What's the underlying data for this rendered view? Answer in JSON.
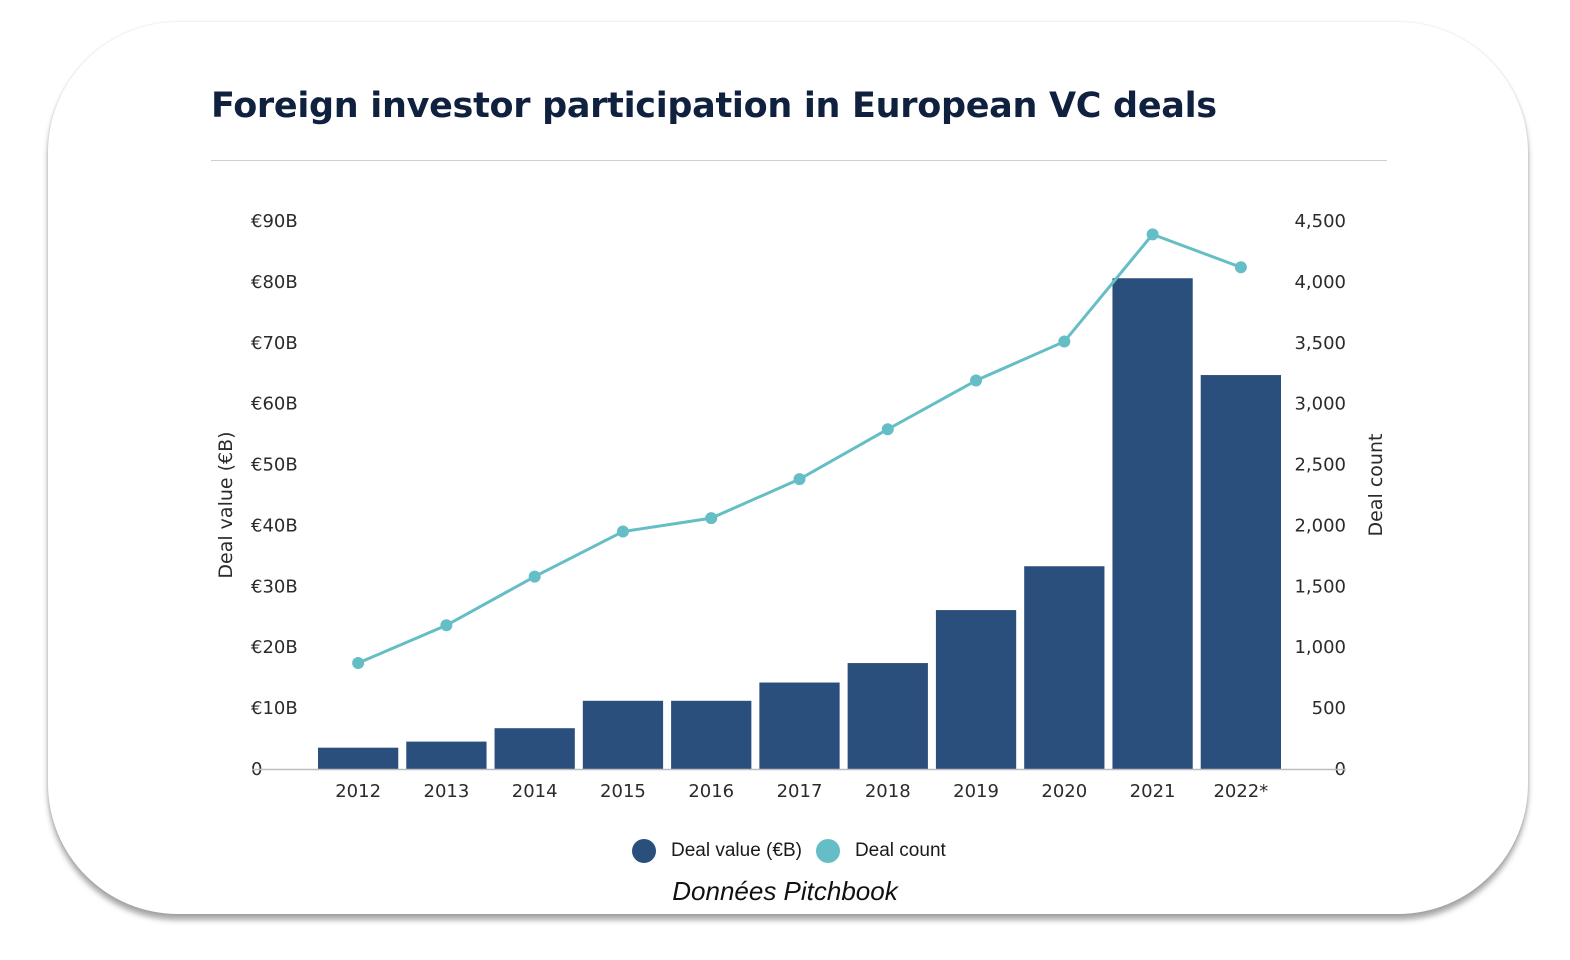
{
  "title": "Foreign investor participation in European VC deals",
  "source": "Données Pitchbook",
  "colors": {
    "bar": "#2b4f7c",
    "line": "#65bec6",
    "title": "#10213f"
  },
  "legend": [
    {
      "label": "Deal value (€B)",
      "color": "#2b4f7c"
    },
    {
      "label": "Deal count",
      "color": "#65bec6"
    }
  ],
  "chart_data": {
    "type": "bar",
    "categories": [
      "2012",
      "2013",
      "2014",
      "2015",
      "2016",
      "2017",
      "2018",
      "2019",
      "2020",
      "2021",
      "2022*"
    ],
    "series": [
      {
        "name": "Deal value (€B)",
        "type": "bar",
        "axis": "left",
        "values": [
          3.5,
          4.5,
          6.7,
          11.2,
          11.2,
          14.2,
          17.4,
          26.1,
          33.3,
          80.6,
          64.7
        ]
      },
      {
        "name": "Deal count",
        "type": "line",
        "axis": "right",
        "values": [
          870,
          1180,
          1580,
          1950,
          2060,
          2380,
          2790,
          3190,
          3510,
          4390,
          4120
        ]
      }
    ],
    "ylabel": "Deal value (€B)",
    "y2label": "Deal count",
    "ylim": [
      0,
      90
    ],
    "y2lim": [
      0,
      4500
    ],
    "yticks": [
      "0",
      "€10B",
      "€20B",
      "€30B",
      "€40B",
      "€50B",
      "€60B",
      "€70B",
      "€80B",
      "€90B"
    ],
    "y2ticks": [
      "0",
      "500",
      "1,000",
      "1,500",
      "2,000",
      "2,500",
      "3,000",
      "3,500",
      "4,000",
      "4,500"
    ],
    "grid": false,
    "legend_position": "bottom-center"
  }
}
